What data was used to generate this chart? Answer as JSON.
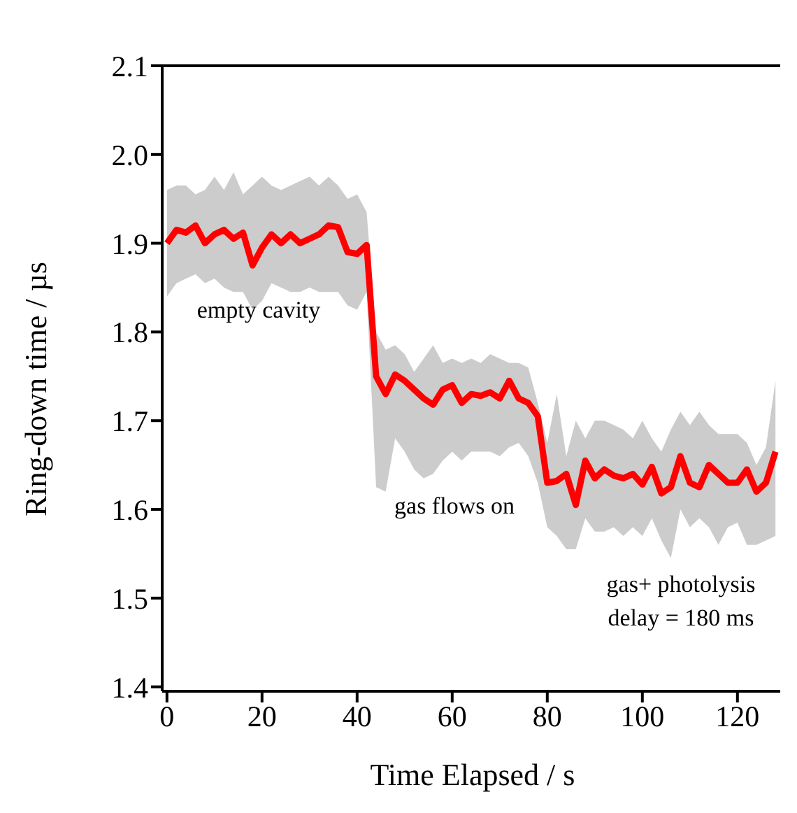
{
  "chart_data": {
    "type": "line",
    "xlabel": "Time Elapsed / s",
    "ylabel": "Ring-down time / µs",
    "x": [
      0,
      2,
      4,
      6,
      8,
      10,
      12,
      14,
      16,
      18,
      20,
      22,
      24,
      26,
      28,
      30,
      32,
      34,
      36,
      38,
      40,
      42,
      44,
      46,
      48,
      50,
      52,
      54,
      56,
      58,
      60,
      62,
      64,
      66,
      68,
      70,
      72,
      74,
      76,
      78,
      80,
      82,
      84,
      86,
      88,
      90,
      92,
      94,
      96,
      98,
      100,
      102,
      104,
      106,
      108,
      110,
      112,
      114,
      116,
      118,
      120,
      122,
      124,
      126,
      128
    ],
    "series": [
      {
        "color": "#ff0000",
        "values": [
          1.9,
          1.915,
          1.912,
          1.92,
          1.9,
          1.91,
          1.915,
          1.905,
          1.912,
          1.875,
          1.895,
          1.91,
          1.9,
          1.91,
          1.9,
          1.905,
          1.91,
          1.92,
          1.918,
          1.89,
          1.888,
          1.898,
          1.75,
          1.73,
          1.752,
          1.745,
          1.735,
          1.725,
          1.718,
          1.735,
          1.74,
          1.72,
          1.73,
          1.728,
          1.732,
          1.725,
          1.745,
          1.725,
          1.72,
          1.705,
          1.63,
          1.632,
          1.64,
          1.605,
          1.655,
          1.635,
          1.645,
          1.638,
          1.635,
          1.64,
          1.628,
          1.648,
          1.618,
          1.625,
          1.66,
          1.63,
          1.625,
          1.65,
          1.64,
          1.63,
          1.63,
          1.645,
          1.62,
          1.63,
          1.665
        ],
        "upper": [
          1.96,
          1.965,
          1.965,
          1.955,
          1.96,
          1.975,
          1.96,
          1.98,
          1.955,
          1.965,
          1.975,
          1.965,
          1.96,
          1.965,
          1.97,
          1.975,
          1.965,
          1.975,
          1.965,
          1.95,
          1.955,
          1.935,
          1.8,
          1.78,
          1.785,
          1.775,
          1.755,
          1.77,
          1.785,
          1.765,
          1.77,
          1.765,
          1.77,
          1.765,
          1.775,
          1.77,
          1.765,
          1.765,
          1.76,
          1.72,
          1.675,
          1.73,
          1.66,
          1.7,
          1.68,
          1.7,
          1.7,
          1.695,
          1.69,
          1.68,
          1.7,
          1.68,
          1.665,
          1.69,
          1.71,
          1.695,
          1.71,
          1.695,
          1.685,
          1.685,
          1.685,
          1.675,
          1.65,
          1.67,
          1.745
        ],
        "lower": [
          1.84,
          1.855,
          1.86,
          1.865,
          1.855,
          1.86,
          1.85,
          1.845,
          1.845,
          1.825,
          1.835,
          1.855,
          1.85,
          1.845,
          1.845,
          1.85,
          1.845,
          1.845,
          1.845,
          1.83,
          1.825,
          1.845,
          1.625,
          1.62,
          1.68,
          1.665,
          1.645,
          1.635,
          1.64,
          1.655,
          1.665,
          1.655,
          1.665,
          1.665,
          1.665,
          1.66,
          1.67,
          1.675,
          1.66,
          1.63,
          1.58,
          1.57,
          1.555,
          1.555,
          1.59,
          1.575,
          1.575,
          1.58,
          1.57,
          1.58,
          1.57,
          1.59,
          1.565,
          1.545,
          1.6,
          1.58,
          1.59,
          1.58,
          1.56,
          1.58,
          1.585,
          1.56,
          1.56,
          1.565,
          1.57
        ]
      }
    ],
    "xlim": [
      -1,
      129
    ],
    "xticks": [
      0,
      20,
      40,
      60,
      80,
      100,
      120
    ],
    "ylim": [
      1.395,
      2.1
    ],
    "yticks": [
      1.4,
      1.5,
      1.6,
      1.7,
      1.8,
      1.9,
      {
        "value": 2,
        "label": "2.0"
      },
      2.1
    ],
    "grid": false,
    "legend": false,
    "marker": "none",
    "line_style": "solid",
    "annotations": [
      "empty cavity",
      "gas flows on",
      "gas+ photolysis\ndelay = 180 ms"
    ]
  }
}
